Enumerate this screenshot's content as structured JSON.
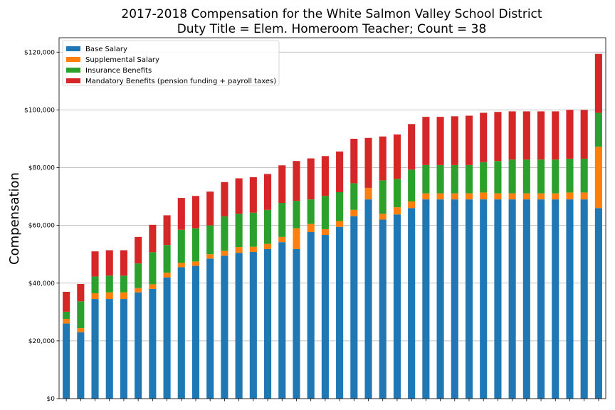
{
  "chart_data": {
    "type": "bar",
    "stacked": true,
    "title": [
      "2017-2018 Compensation for the White Salmon Valley School District",
      "Duty Title = Elem. Homeroom Teacher; Count = 38"
    ],
    "xlabel": "",
    "ylabel": "Compensation",
    "ylim": [
      0,
      125000
    ],
    "yticks": [
      0,
      20000,
      40000,
      60000,
      80000,
      100000,
      120000
    ],
    "ytick_labels": [
      "$0",
      "$20,000",
      "$40,000",
      "$60,000",
      "$80,000",
      "$100,000",
      "$120,000"
    ],
    "grid": true,
    "legend_position": "top-left",
    "series": [
      {
        "name": "Base Salary",
        "color": "#1f77b4",
        "values": [
          26000,
          23000,
          34500,
          34500,
          34500,
          36800,
          38000,
          42000,
          45500,
          46000,
          48500,
          49500,
          50500,
          50800,
          51800,
          54200,
          51800,
          57700,
          56700,
          59500,
          63200,
          69000,
          62000,
          63800,
          66000,
          69000,
          69000,
          69000,
          69000,
          69000,
          69000,
          69000,
          69000,
          69000,
          69000,
          69000,
          69000,
          66000
        ]
      },
      {
        "name": "Supplemental Salary",
        "color": "#ff7f0e",
        "values": [
          1600,
          1400,
          2000,
          2300,
          2300,
          1500,
          1600,
          1600,
          1500,
          1500,
          1500,
          1700,
          2000,
          1800,
          1800,
          1800,
          7200,
          2800,
          2000,
          2000,
          2200,
          4000,
          2000,
          2500,
          2300,
          2100,
          2100,
          2100,
          2100,
          2400,
          2100,
          2100,
          2100,
          2100,
          2100,
          2400,
          2400,
          21300
        ]
      },
      {
        "name": "Insurance Benefits",
        "color": "#2ca02c",
        "values": [
          2500,
          9300,
          5800,
          5800,
          5800,
          8500,
          11100,
          9600,
          11500,
          11500,
          10000,
          11900,
          11500,
          11800,
          11800,
          11800,
          9500,
          8500,
          11500,
          10000,
          9200,
          0,
          11600,
          9800,
          11000,
          9800,
          9800,
          9800,
          9800,
          10500,
          11200,
          11700,
          11700,
          11700,
          11700,
          11700,
          11700,
          11700
        ]
      },
      {
        "name": "Mandatory Benefits (pension funding + payroll taxes)",
        "color": "#d62728",
        "values": [
          6900,
          6000,
          8700,
          8800,
          8800,
          9200,
          9500,
          10300,
          11000,
          11200,
          11700,
          11900,
          12300,
          12300,
          12400,
          13000,
          13800,
          14200,
          13800,
          14100,
          15400,
          17300,
          15200,
          15400,
          15800,
          16700,
          16700,
          16900,
          17100,
          17100,
          17000,
          16700,
          16700,
          16700,
          16700,
          16900,
          16900,
          20400
        ]
      }
    ]
  }
}
